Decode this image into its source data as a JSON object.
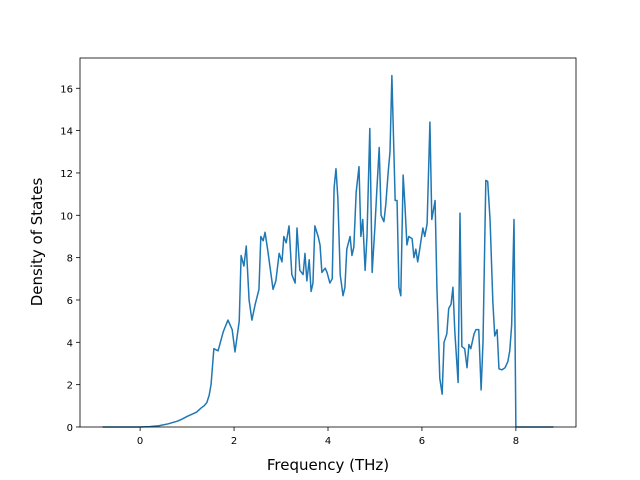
{
  "chart_data": {
    "type": "line",
    "x_label": "Frequency (THz)",
    "y_label": "Density of States",
    "xlim": [
      -1.28,
      9.28
    ],
    "ylim": [
      0,
      17.43
    ],
    "xticks": [
      0,
      2,
      4,
      6,
      8
    ],
    "yticks": [
      0,
      2,
      4,
      6,
      8,
      10,
      12,
      14,
      16
    ],
    "series": [
      {
        "color": "#1f77b4",
        "x": [
          -0.8,
          -0.4,
          0,
          0.2,
          0.4,
          0.6,
          0.8,
          0.9,
          1.0,
          1.1,
          1.2,
          1.3,
          1.36,
          1.42,
          1.47,
          1.51,
          1.57,
          1.66,
          1.77,
          1.87,
          1.96,
          2.02,
          2.11,
          2.15,
          2.21,
          2.26,
          2.32,
          2.38,
          2.45,
          2.53,
          2.57,
          2.62,
          2.66,
          2.72,
          2.83,
          2.89,
          2.96,
          3.02,
          3.06,
          3.11,
          3.17,
          3.23,
          3.3,
          3.34,
          3.4,
          3.47,
          3.51,
          3.55,
          3.6,
          3.64,
          3.68,
          3.72,
          3.79,
          3.83,
          3.87,
          3.94,
          3.98,
          4.04,
          4.09,
          4.13,
          4.17,
          4.21,
          4.26,
          4.32,
          4.36,
          4.4,
          4.47,
          4.51,
          4.55,
          4.6,
          4.66,
          4.7,
          4.74,
          4.79,
          4.83,
          4.89,
          4.94,
          5.0,
          5.04,
          5.09,
          5.13,
          5.19,
          5.23,
          5.28,
          5.32,
          5.36,
          5.43,
          5.47,
          5.51,
          5.55,
          5.6,
          5.64,
          5.68,
          5.72,
          5.79,
          5.83,
          5.87,
          5.91,
          5.96,
          6.02,
          6.06,
          6.11,
          6.17,
          6.21,
          6.28,
          6.32,
          6.38,
          6.43,
          6.47,
          6.53,
          6.57,
          6.62,
          6.66,
          6.7,
          6.77,
          6.81,
          6.85,
          6.91,
          6.96,
          7.0,
          7.04,
          7.11,
          7.15,
          7.21,
          7.26,
          7.3,
          7.36,
          7.4,
          7.45,
          7.51,
          7.55,
          7.6,
          7.64,
          7.7,
          7.77,
          7.83,
          7.87,
          7.91,
          7.96,
          8.0,
          8.8
        ],
        "values": [
          0,
          0,
          0,
          0.02,
          0.06,
          0.15,
          0.28,
          0.38,
          0.5,
          0.6,
          0.7,
          0.9,
          1.0,
          1.15,
          1.5,
          2.0,
          3.7,
          3.6,
          4.5,
          5.05,
          4.6,
          3.55,
          5.0,
          8.1,
          7.6,
          8.55,
          6.0,
          5.05,
          5.8,
          6.5,
          9.0,
          8.8,
          9.2,
          8.3,
          6.5,
          6.9,
          8.2,
          7.8,
          9.0,
          8.7,
          9.5,
          7.2,
          6.8,
          9.4,
          7.4,
          7.2,
          8.2,
          6.9,
          7.9,
          6.4,
          6.8,
          9.5,
          9.0,
          8.6,
          7.3,
          7.5,
          7.3,
          6.8,
          7.0,
          11.3,
          12.2,
          10.8,
          7.2,
          6.2,
          6.6,
          8.4,
          9.0,
          8.1,
          8.5,
          11.1,
          12.3,
          9.0,
          9.8,
          7.4,
          9.0,
          14.1,
          7.3,
          9.5,
          11.2,
          13.2,
          10.0,
          9.7,
          10.5,
          12.0,
          13.0,
          16.6,
          10.7,
          10.7,
          6.6,
          6.2,
          11.9,
          10.4,
          8.6,
          9.0,
          8.9,
          8.0,
          8.4,
          7.8,
          8.5,
          9.4,
          9.0,
          9.6,
          14.4,
          9.8,
          10.7,
          6.5,
          2.3,
          1.55,
          4.0,
          4.4,
          5.6,
          5.8,
          6.6,
          4.5,
          2.1,
          10.1,
          3.8,
          3.7,
          2.8,
          3.9,
          3.7,
          4.4,
          4.6,
          4.6,
          1.75,
          4.0,
          11.65,
          11.6,
          9.8,
          5.9,
          4.3,
          4.6,
          2.75,
          2.7,
          2.8,
          3.1,
          3.6,
          4.8,
          9.8,
          0,
          0
        ]
      }
    ]
  }
}
